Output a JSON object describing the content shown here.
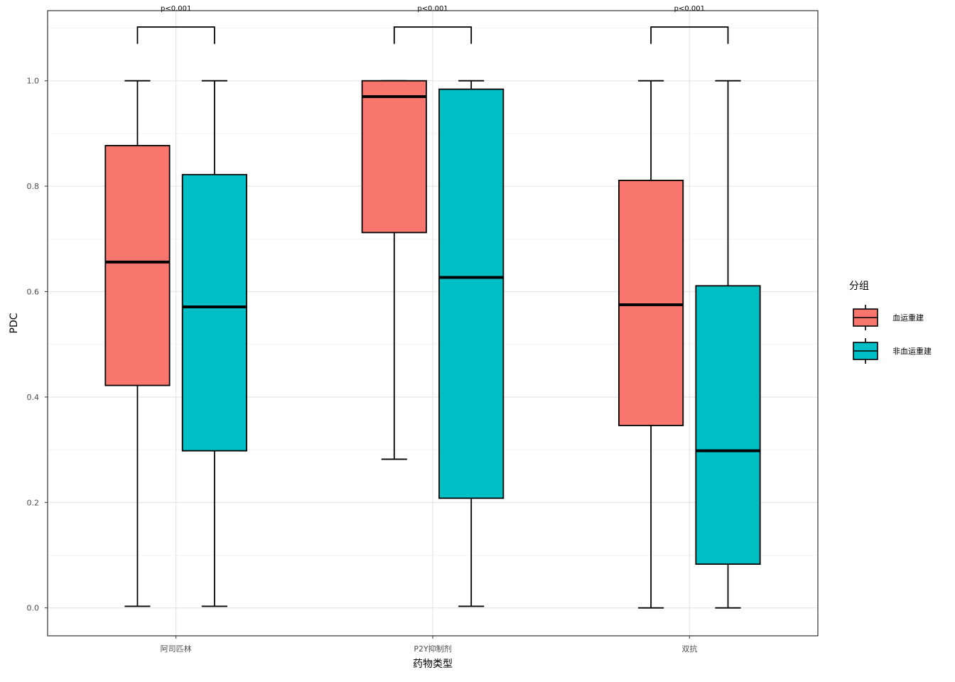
{
  "chart_data": {
    "type": "boxplot",
    "xlabel": "药物类型",
    "ylabel": "PDC",
    "ylim": [
      -0.053,
      1.133
    ],
    "yticks": [
      0.0,
      0.2,
      0.4,
      0.6,
      0.8,
      1.0
    ],
    "ytick_labels": [
      "0.0",
      "0.2",
      "0.4",
      "0.6",
      "0.8",
      "1.0"
    ],
    "grid": true,
    "categories": [
      "阿司匹林",
      "P2Y抑制剂",
      "双抗"
    ],
    "legend": {
      "title": "分组",
      "position": "right",
      "entries": [
        "血运重建",
        "非血运重建"
      ]
    },
    "series": [
      {
        "name": "血运重建",
        "color": "#F8766D",
        "boxes": [
          {
            "min": 0.003,
            "q1": 0.422,
            "median": 0.656,
            "q3": 0.877,
            "max": 1.0
          },
          {
            "min": 0.282,
            "q1": 0.712,
            "median": 0.97,
            "q3": 1.0,
            "max": 1.0
          },
          {
            "min": 0.0,
            "q1": 0.346,
            "median": 0.575,
            "q3": 0.811,
            "max": 1.0
          }
        ]
      },
      {
        "name": "非血运重建",
        "color": "#00BFC4",
        "boxes": [
          {
            "min": 0.003,
            "q1": 0.298,
            "median": 0.571,
            "q3": 0.822,
            "max": 1.0
          },
          {
            "min": 0.003,
            "q1": 0.208,
            "median": 0.627,
            "q3": 0.984,
            "max": 1.0
          },
          {
            "min": 0.0,
            "q1": 0.083,
            "median": 0.298,
            "q3": 0.611,
            "max": 1.0
          }
        ]
      }
    ],
    "annotations": [
      "p<0.001",
      "p<0.001",
      "p<0.001"
    ]
  }
}
